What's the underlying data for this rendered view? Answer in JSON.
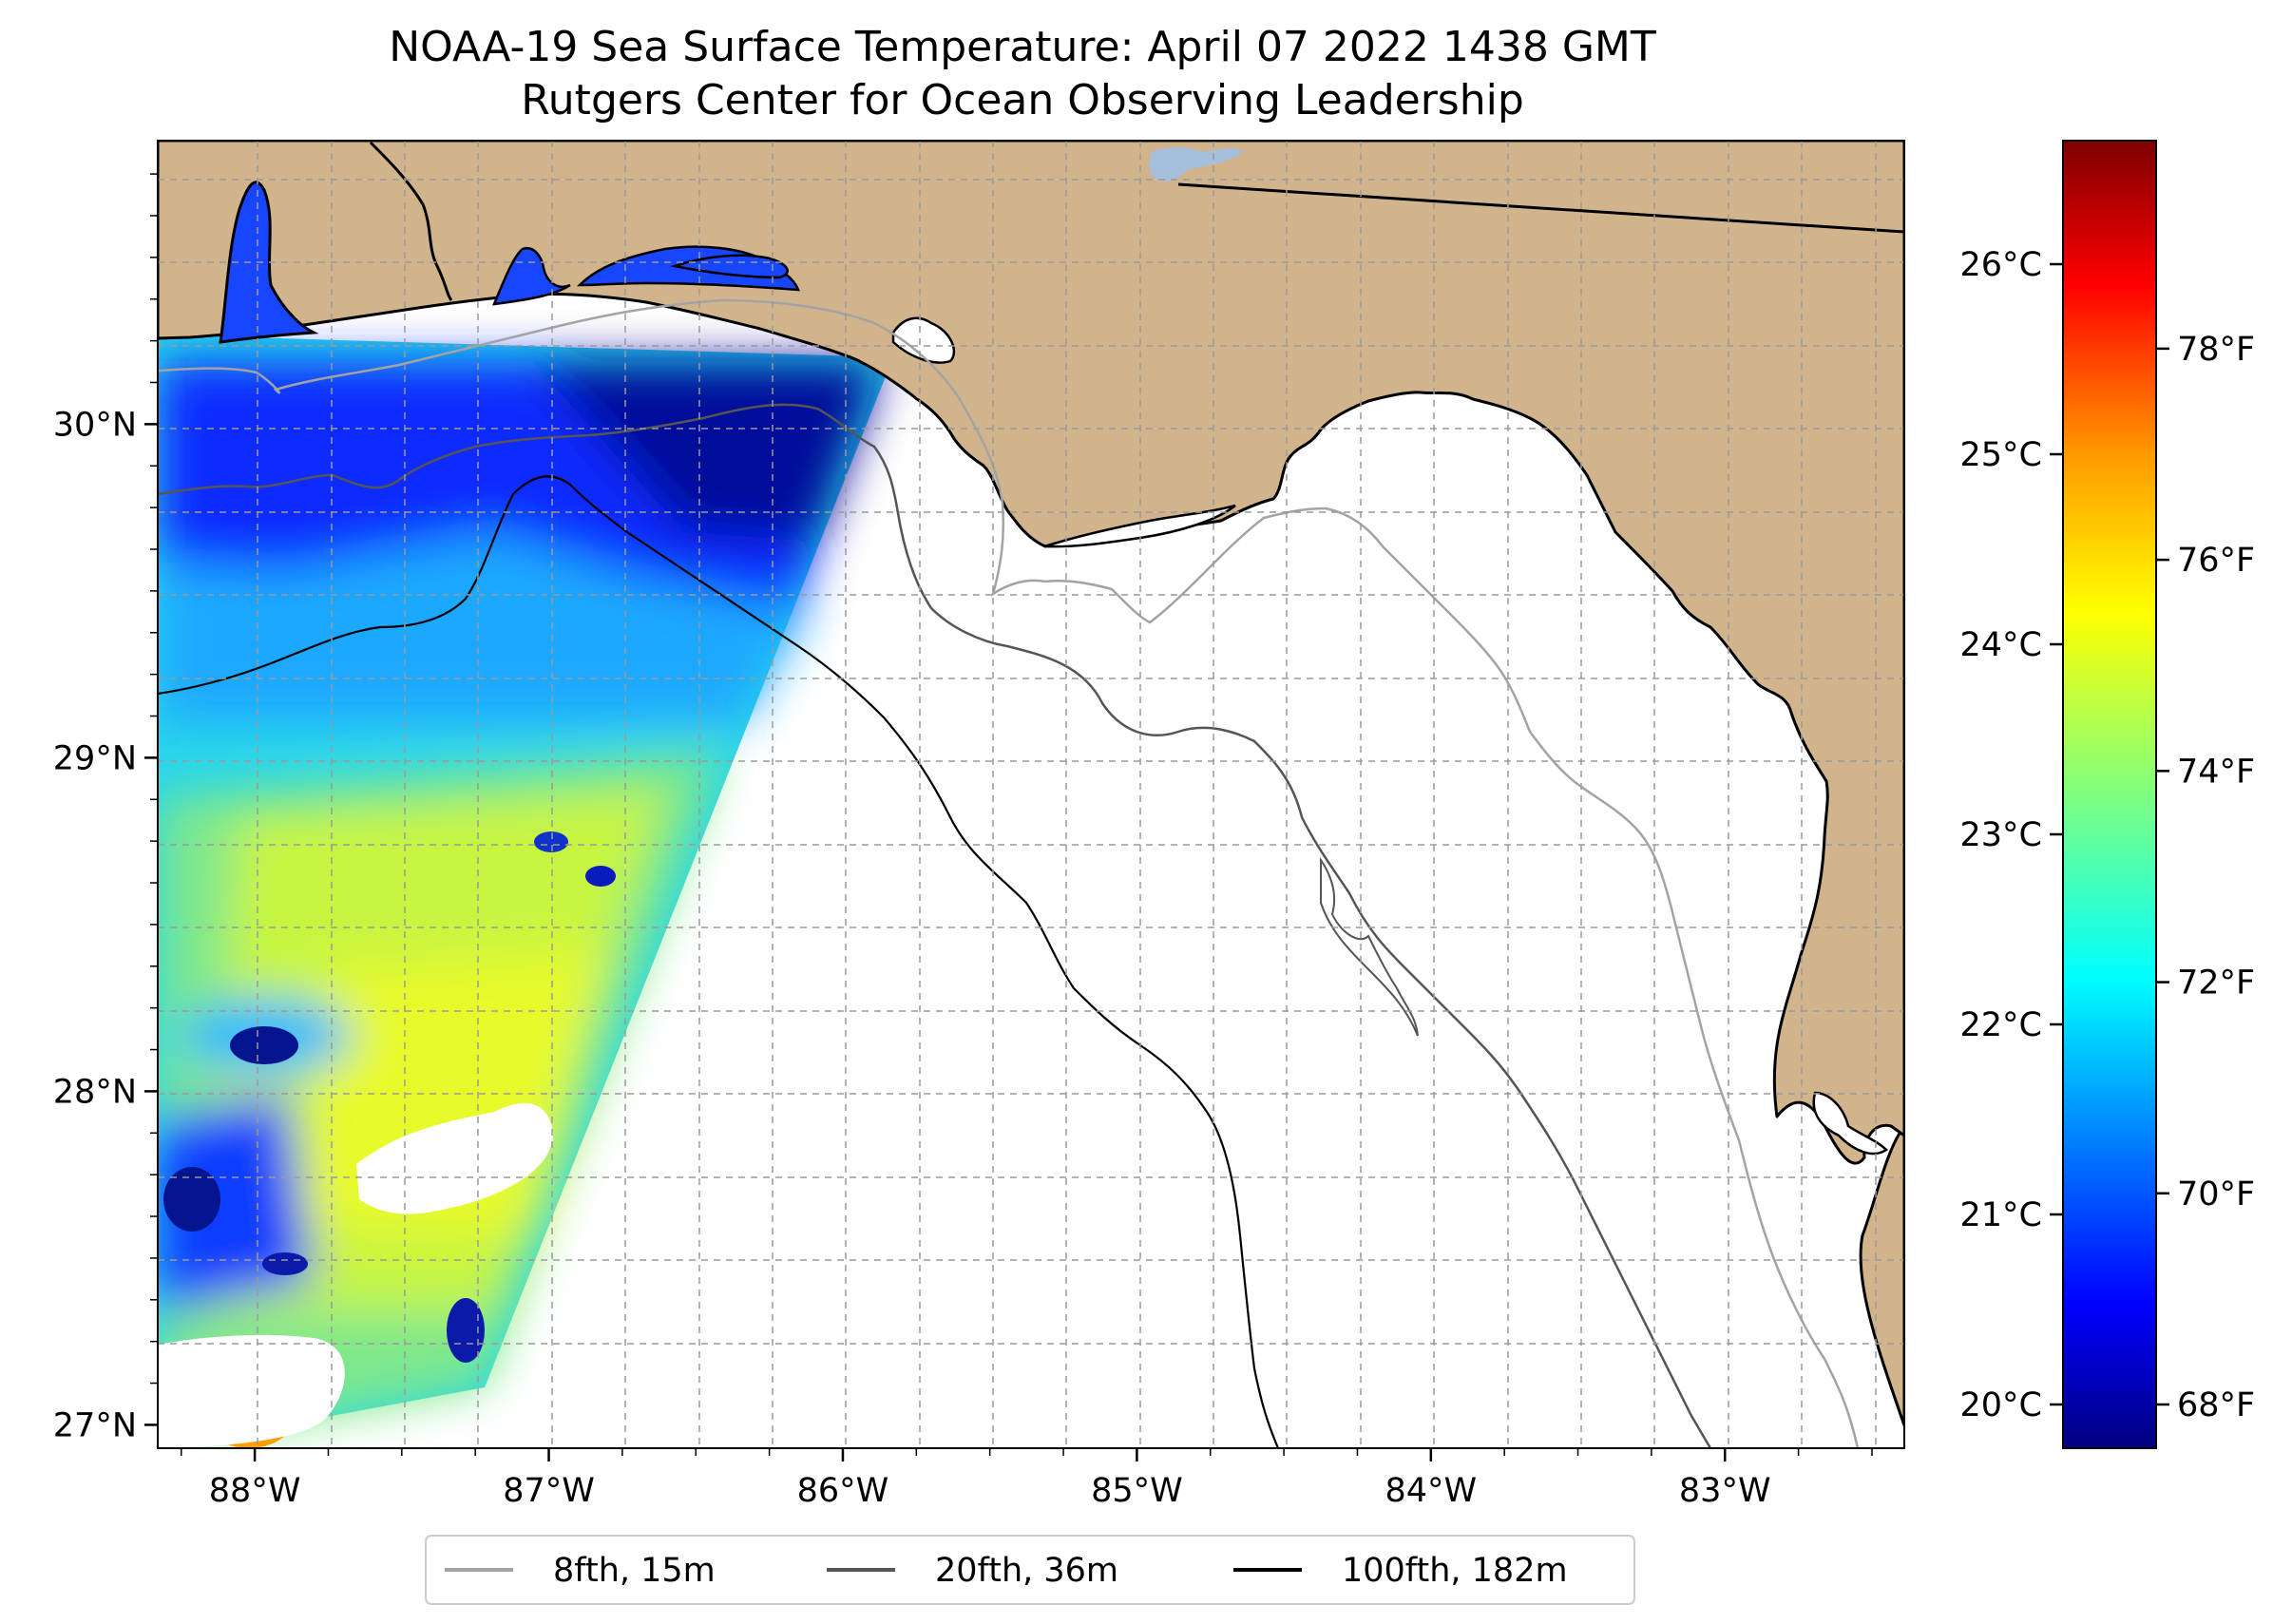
{
  "title": {
    "line1": "NOAA-19 Sea Surface Temperature: April 07 2022 1438 GMT",
    "line2": "Rutgers Center for Ocean Observing Leadership"
  },
  "chart_data": {
    "type": "heatmap",
    "subtype": "satellite map",
    "x_axis": {
      "range_deg": [
        -88.33,
        -82.39
      ],
      "ticks": [
        -88,
        -87,
        -86,
        -85,
        -84,
        -83
      ],
      "tick_labels": [
        "88°W",
        "87°W",
        "86°W",
        "85°W",
        "84°W",
        "83°W"
      ]
    },
    "y_axis": {
      "range_deg": [
        26.93,
        30.85
      ],
      "ticks": [
        27,
        28,
        29,
        30
      ],
      "tick_labels": [
        "27°N",
        "28°N",
        "29°N",
        "30°N"
      ]
    },
    "colorbar": {
      "colormap": "jet",
      "range_c": [
        19.77,
        26.65
      ],
      "celsius_ticks": [
        20,
        21,
        22,
        23,
        24,
        25,
        26
      ],
      "celsius_labels": [
        "20°C",
        "21°C",
        "22°C",
        "23°C",
        "24°C",
        "25°C",
        "26°C"
      ],
      "fahrenheit_ticks": [
        68,
        70,
        72,
        74,
        76,
        78
      ],
      "fahrenheit_labels": [
        "68°F",
        "70°F",
        "72°F",
        "74°F",
        "76°F",
        "78°F"
      ],
      "colors": [
        "#00007f",
        "#0000ff",
        "#007fff",
        "#00ffff",
        "#7fff7f",
        "#ffff00",
        "#ff7f00",
        "#ff0000",
        "#7f0000"
      ]
    },
    "legend": {
      "position": "bottom-center",
      "items": [
        {
          "label": "8fth, 15m",
          "color": "#a3a3a3"
        },
        {
          "label": "20fth, 36m",
          "color": "#555555"
        },
        {
          "label": "100fth, 182m",
          "color": "#000000"
        }
      ]
    },
    "colors": {
      "land": "#d2b48c",
      "water": "#ffffff",
      "lake": "#a5bfdd"
    }
  }
}
